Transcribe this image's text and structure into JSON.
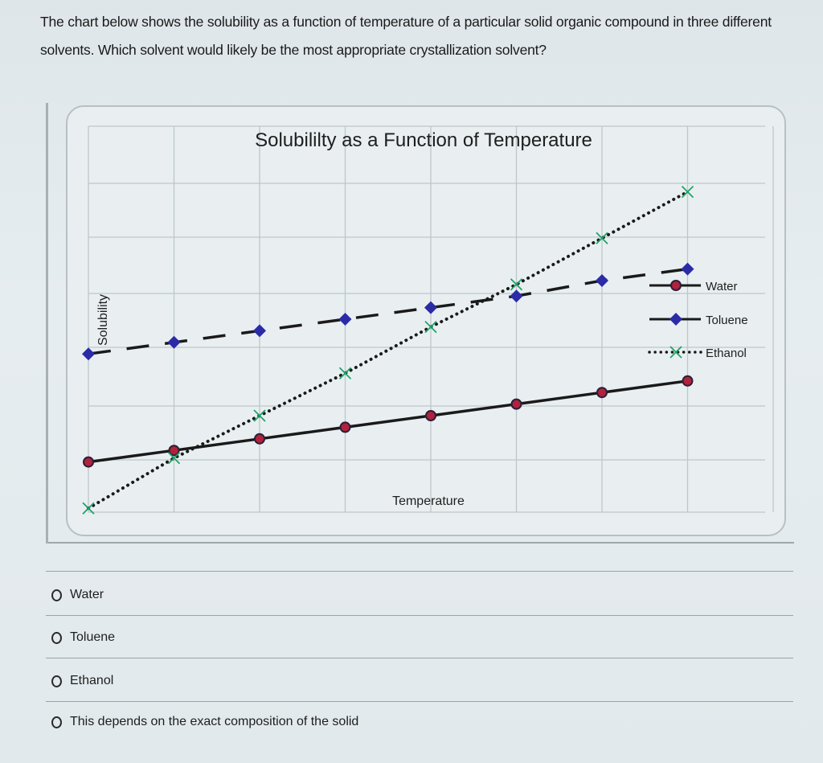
{
  "question": {
    "text": "The chart below shows the solubility as a function of temperature of a particular solid organic compound in three different solvents. Which solvent would likely be the most appropriate crystallization solvent?"
  },
  "chart": {
    "title": "Solubililty as a Function of Temperature",
    "xlabel": "Temperature",
    "ylabel": "Solubility",
    "legend": [
      {
        "label": "Water",
        "style": "solid",
        "marker": "circle",
        "color": "#b0233a"
      },
      {
        "label": "Toluene",
        "style": "dashed",
        "marker": "diamond",
        "color": "#2b2ba8"
      },
      {
        "label": "Ethanol",
        "style": "dotted",
        "marker": "x",
        "color": "#1fa36a"
      }
    ]
  },
  "chart_data": {
    "type": "line",
    "title": "Solubililty as a Function of Temperature",
    "xlabel": "Temperature",
    "ylabel": "Solubility",
    "x": [
      1,
      2,
      3,
      4,
      5,
      6,
      7,
      8
    ],
    "series": [
      {
        "name": "Water",
        "values": [
          1.3,
          1.6,
          1.9,
          2.2,
          2.5,
          2.8,
          3.1,
          3.4
        ],
        "line": "solid",
        "marker": "circle",
        "marker_color": "#b0233a"
      },
      {
        "name": "Toluene",
        "values": [
          4.1,
          4.4,
          4.7,
          5.0,
          5.3,
          5.6,
          6.0,
          6.3
        ],
        "line": "dashed",
        "marker": "diamond",
        "marker_color": "#2b2ba8"
      },
      {
        "name": "Ethanol",
        "values": [
          0.1,
          1.4,
          2.5,
          3.6,
          4.8,
          5.9,
          7.1,
          8.3
        ],
        "line": "dotted",
        "marker": "x",
        "marker_color": "#1fa36a"
      }
    ],
    "ylim": [
      0,
      10
    ],
    "xlim": [
      1,
      9
    ],
    "grid": true,
    "legend_position": "right",
    "axis_tick_labels": "none"
  },
  "options": [
    {
      "label": "Water"
    },
    {
      "label": "Toluene"
    },
    {
      "label": "Ethanol"
    },
    {
      "label": "This depends on the exact composition of the solid"
    }
  ]
}
